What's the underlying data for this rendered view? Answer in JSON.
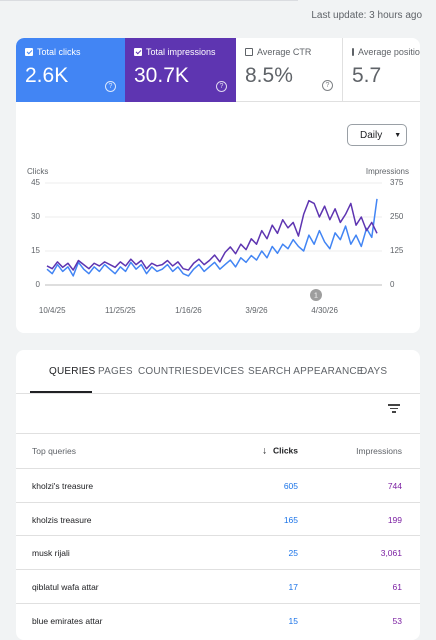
{
  "header": {
    "last_update": "Last update: 3 hours ago"
  },
  "metrics": [
    {
      "label": "Total clicks",
      "value": "2.6K"
    },
    {
      "label": "Total impressions",
      "value": "30.7K"
    },
    {
      "label": "Average CTR",
      "value": "8.5%"
    },
    {
      "label": "Average position",
      "value": "5.7"
    }
  ],
  "controls": {
    "granularity": "Daily"
  },
  "chart_data": {
    "type": "line",
    "categories": [
      null,
      "10/4/25",
      null,
      null,
      null,
      null,
      null,
      null,
      null,
      null,
      null,
      null,
      null,
      null,
      "11/25/25",
      null,
      null,
      null,
      null,
      null,
      null,
      null,
      null,
      null,
      null,
      null,
      null,
      "1/16/26",
      null,
      null,
      null,
      null,
      null,
      null,
      null,
      null,
      null,
      null,
      null,
      null,
      "3/9/26",
      null,
      null,
      null,
      null,
      null,
      null,
      null,
      null,
      null,
      null,
      null,
      null,
      "4/30/26",
      null,
      null,
      null,
      null,
      null,
      null,
      null,
      null,
      null,
      null
    ],
    "series": [
      {
        "name": "Clicks",
        "color": "#4285f4",
        "values": [
          7,
          5,
          9,
          6,
          8,
          4,
          10,
          7,
          5,
          8,
          6,
          9,
          7,
          5,
          8,
          6,
          10,
          7,
          9,
          5,
          8,
          6,
          7,
          9,
          6,
          8,
          5,
          4,
          7,
          9,
          6,
          8,
          10,
          7,
          9,
          11,
          8,
          12,
          10,
          13,
          11,
          15,
          12,
          17,
          14,
          18,
          16,
          20,
          17,
          15,
          22,
          18,
          24,
          19,
          16,
          23,
          20,
          26,
          18,
          22,
          17,
          25,
          21,
          38
        ]
      },
      {
        "name": "Impressions",
        "color": "#5e35b1",
        "axis": "y2",
        "values": [
          70,
          60,
          85,
          65,
          80,
          55,
          90,
          75,
          60,
          80,
          70,
          85,
          75,
          65,
          85,
          70,
          95,
          75,
          90,
          60,
          80,
          70,
          75,
          90,
          70,
          85,
          60,
          55,
          80,
          95,
          75,
          90,
          110,
          85,
          120,
          140,
          115,
          150,
          130,
          170,
          150,
          200,
          170,
          220,
          190,
          240,
          210,
          230,
          180,
          260,
          310,
          300,
          250,
          290,
          240,
          280,
          230,
          260,
          300,
          220,
          250,
          200,
          230,
          190
        ]
      }
    ],
    "ylim": [
      0,
      45
    ],
    "yticks": [
      0,
      15,
      30,
      45
    ],
    "y2lim": [
      0,
      375
    ],
    "y2ticks": [
      0,
      125,
      250,
      375
    ],
    "grid": true,
    "annotation": "1"
  },
  "tabs": [
    "QUERIES",
    "PAGES",
    "COUNTRIES",
    "DEVICES",
    "SEARCH APPEARANCE",
    "DAYS"
  ],
  "table": {
    "columns": [
      "Top queries",
      "Clicks",
      "Impressions"
    ],
    "rows": [
      [
        "kholzi's treasure",
        "605",
        "744"
      ],
      [
        "kholzis treasure",
        "165",
        "199"
      ],
      [
        "musk rijali",
        "25",
        "3,061"
      ],
      [
        "qiblatul wafa attar",
        "17",
        "61"
      ],
      [
        "blue emirates attar",
        "15",
        "53"
      ]
    ]
  }
}
